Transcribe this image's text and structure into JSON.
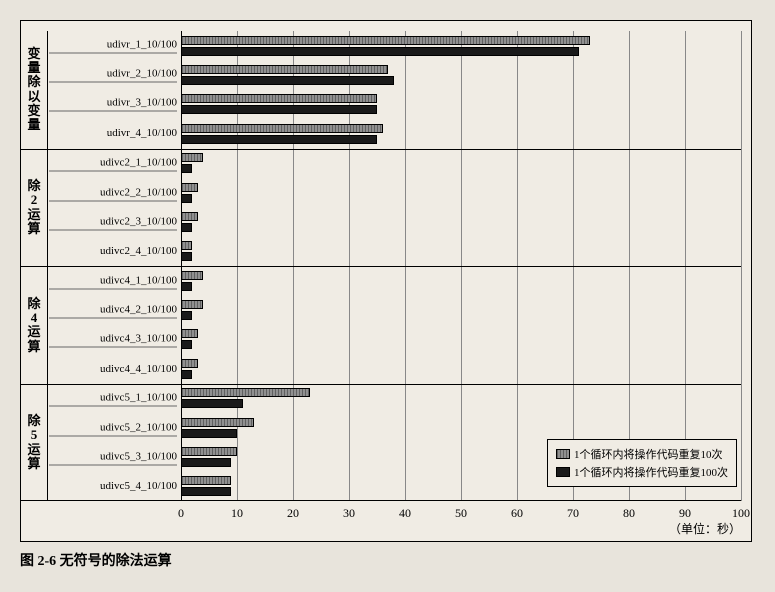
{
  "caption": "图 2-6  无符号的除法运算",
  "xaxis": {
    "min": 0,
    "max": 100,
    "ticks": [
      0,
      10,
      20,
      30,
      40,
      50,
      60,
      70,
      80,
      90,
      100
    ],
    "unit_label": "（单位：秒）"
  },
  "legend": {
    "series_a": "1个循环内将操作代码重复10次",
    "series_b": "1个循环内将操作代码重复100次"
  },
  "colors": {
    "series_a": "#808080",
    "series_b": "#1a1a1a",
    "background": "#f0ece4",
    "grid": "#888888",
    "text": "#000000"
  },
  "groups": [
    {
      "title": "变量除以变量",
      "rows": [
        {
          "label": "udivr_1_10/100",
          "a": 73,
          "b": 71
        },
        {
          "label": "udivr_2_10/100",
          "a": 37,
          "b": 38
        },
        {
          "label": "udivr_3_10/100",
          "a": 35,
          "b": 35
        },
        {
          "label": "udivr_4_10/100",
          "a": 36,
          "b": 35
        }
      ]
    },
    {
      "title": "除2运算",
      "rows": [
        {
          "label": "udivc2_1_10/100",
          "a": 4,
          "b": 2
        },
        {
          "label": "udivc2_2_10/100",
          "a": 3,
          "b": 2
        },
        {
          "label": "udivc2_3_10/100",
          "a": 3,
          "b": 2
        },
        {
          "label": "udivc2_4_10/100",
          "a": 2,
          "b": 2
        }
      ]
    },
    {
      "title": "除4运算",
      "rows": [
        {
          "label": "udivc4_1_10/100",
          "a": 4,
          "b": 2
        },
        {
          "label": "udivc4_2_10/100",
          "a": 4,
          "b": 2
        },
        {
          "label": "udivc4_3_10/100",
          "a": 3,
          "b": 2
        },
        {
          "label": "udivc4_4_10/100",
          "a": 3,
          "b": 2
        }
      ]
    },
    {
      "title": "除5运算",
      "rows": [
        {
          "label": "udivc5_1_10/100",
          "a": 23,
          "b": 11
        },
        {
          "label": "udivc5_2_10/100",
          "a": 13,
          "b": 10
        },
        {
          "label": "udivc5_3_10/100",
          "a": 10,
          "b": 9
        },
        {
          "label": "udivc5_4_10/100",
          "a": 9,
          "b": 9
        }
      ]
    }
  ]
}
